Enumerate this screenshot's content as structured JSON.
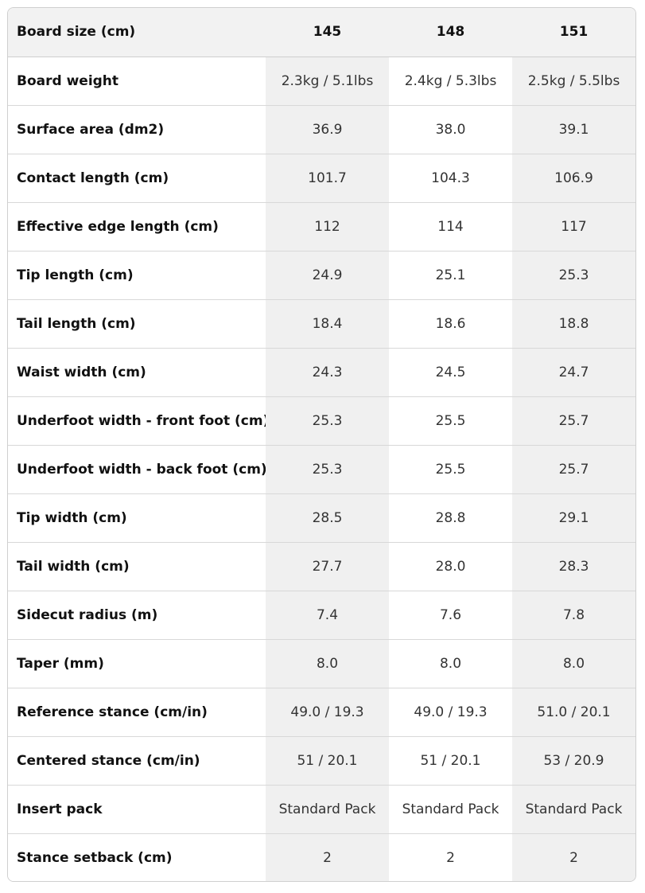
{
  "table": {
    "header": {
      "label": "Board size (cm)",
      "sizes": [
        "145",
        "148",
        "151"
      ]
    },
    "rows": [
      {
        "label": "Board weight",
        "values": [
          "2.3kg / 5.1lbs",
          "2.4kg / 5.3lbs",
          "2.5kg / 5.5lbs"
        ]
      },
      {
        "label": "Surface area (dm2)",
        "values": [
          "36.9",
          "38.0",
          "39.1"
        ]
      },
      {
        "label": "Contact length (cm)",
        "values": [
          "101.7",
          "104.3",
          "106.9"
        ]
      },
      {
        "label": "Effective edge length (cm)",
        "values": [
          "112",
          "114",
          "117"
        ]
      },
      {
        "label": "Tip length (cm)",
        "values": [
          "24.9",
          "25.1",
          "25.3"
        ]
      },
      {
        "label": "Tail length (cm)",
        "values": [
          "18.4",
          "18.6",
          "18.8"
        ]
      },
      {
        "label": "Waist width (cm)",
        "values": [
          "24.3",
          "24.5",
          "24.7"
        ]
      },
      {
        "label": "Underfoot width - front foot (cm)",
        "values": [
          "25.3",
          "25.5",
          "25.7"
        ]
      },
      {
        "label": "Underfoot width - back foot (cm)",
        "values": [
          "25.3",
          "25.5",
          "25.7"
        ]
      },
      {
        "label": "Tip width (cm)",
        "values": [
          "28.5",
          "28.8",
          "29.1"
        ]
      },
      {
        "label": "Tail width (cm)",
        "values": [
          "27.7",
          "28.0",
          "28.3"
        ]
      },
      {
        "label": "Sidecut radius (m)",
        "values": [
          "7.4",
          "7.6",
          "7.8"
        ]
      },
      {
        "label": "Taper (mm)",
        "values": [
          "8.0",
          "8.0",
          "8.0"
        ]
      },
      {
        "label": "Reference stance (cm/in)",
        "values": [
          "49.0 / 19.3",
          "49.0 / 19.3",
          "51.0 / 20.1"
        ]
      },
      {
        "label": "Centered stance (cm/in)",
        "values": [
          "51 / 20.1",
          "51 / 20.1",
          "53 / 20.9"
        ]
      },
      {
        "label": "Insert pack",
        "values": [
          "Standard Pack",
          "Standard Pack",
          "Standard Pack"
        ]
      },
      {
        "label": "Stance setback (cm)",
        "values": [
          "2",
          "2",
          "2"
        ]
      }
    ]
  }
}
